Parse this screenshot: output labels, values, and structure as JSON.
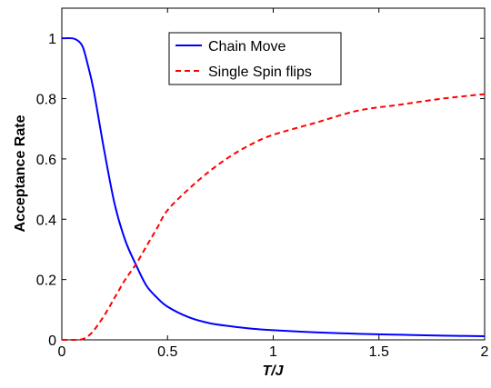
{
  "chart_data": {
    "type": "line",
    "title": "",
    "xlabel": "T/J",
    "ylabel": "Acceptance Rate",
    "xlim": [
      0,
      2
    ],
    "ylim": [
      0,
      1.1
    ],
    "grid": false,
    "legend_position": "top-center",
    "x_ticks": [
      0,
      0.5,
      1,
      1.5,
      2
    ],
    "x_tick_labels": [
      "0",
      "0.5",
      "1",
      "1.5",
      "2"
    ],
    "y_ticks": [
      0,
      0.2,
      0.4,
      0.6,
      0.8,
      1
    ],
    "y_tick_labels": [
      "0",
      "0.2",
      "0.4",
      "0.6",
      "0.8",
      "1"
    ],
    "x": [
      0,
      0.05,
      0.08,
      0.1,
      0.12,
      0.15,
      0.2,
      0.25,
      0.3,
      0.35,
      0.4,
      0.45,
      0.5,
      0.6,
      0.7,
      0.8,
      0.9,
      1.0,
      1.2,
      1.4,
      1.6,
      1.8,
      2.0
    ],
    "series": [
      {
        "name": "Chain Move",
        "color": "#0000ff",
        "dash": "solid",
        "values": [
          1.0,
          1.0,
          0.99,
          0.97,
          0.92,
          0.83,
          0.63,
          0.45,
          0.33,
          0.25,
          0.18,
          0.14,
          0.11,
          0.075,
          0.055,
          0.045,
          0.037,
          0.032,
          0.025,
          0.02,
          0.017,
          0.014,
          0.012
        ]
      },
      {
        "name": "Single Spin flips",
        "color": "#ff0000",
        "dash": "dashed",
        "values": [
          0.0,
          0.0,
          0.0,
          0.003,
          0.01,
          0.03,
          0.08,
          0.14,
          0.2,
          0.25,
          0.31,
          0.37,
          0.43,
          0.5,
          0.56,
          0.61,
          0.65,
          0.68,
          0.72,
          0.76,
          0.78,
          0.8,
          0.815
        ]
      }
    ]
  }
}
